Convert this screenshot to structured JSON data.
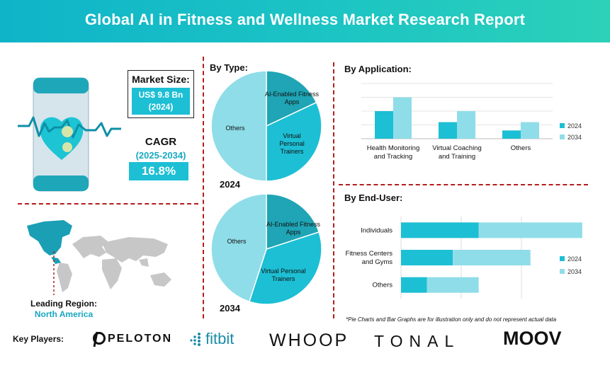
{
  "header": {
    "title": "Global AI in Fitness and Wellness Market Research Report"
  },
  "market_size": {
    "label": "Market Size:",
    "value_line1": "US$ 9.8 Bn",
    "value_line2": "(2024)"
  },
  "cagr": {
    "label": "CAGR",
    "period": "(2025-2034)",
    "value": "16.8%"
  },
  "region": {
    "label": "Leading Region:",
    "value": "North America"
  },
  "colors": {
    "accent": "#1dbfd4",
    "dark": "#1fa5b5",
    "light": "#8fdde8",
    "divider": "#b21e1e"
  },
  "chart_data": [
    {
      "type": "pie",
      "title": "By Type:",
      "year": "2024",
      "labels": [
        "AI-Enabled Fitness Apps",
        "Virtual Personal Trainers",
        "Others"
      ],
      "values": [
        18,
        32,
        50
      ]
    },
    {
      "type": "pie",
      "year": "2034",
      "labels": [
        "AI-Enabled Fitness Apps",
        "Virtual Personal Trainers",
        "Others"
      ],
      "values": [
        20,
        35,
        45
      ]
    },
    {
      "type": "bar",
      "orientation": "vertical",
      "title": "By Application:",
      "categories": [
        "Health Monitoring and Tracking",
        "Virtual Coaching and Training",
        "Others"
      ],
      "series": [
        {
          "name": "2024",
          "values": [
            50,
            30,
            15
          ]
        },
        {
          "name": "2034",
          "values": [
            75,
            50,
            30
          ]
        }
      ],
      "ylim": [
        0,
        100
      ],
      "legend": "right"
    },
    {
      "type": "bar",
      "orientation": "horizontal",
      "stacked": true,
      "title": "By End-User:",
      "categories": [
        "Individuals",
        "Fitness Centers and Gyms",
        "Others"
      ],
      "series": [
        {
          "name": "2024",
          "values": [
            30,
            20,
            10
          ]
        },
        {
          "name": "2034",
          "values": [
            40,
            30,
            20
          ]
        }
      ],
      "xlim": [
        0,
        100
      ],
      "legend": "right"
    }
  ],
  "footnote": "*Pie Charts and Bar Graphs are for illustration only and do not represent actual data",
  "key_players": {
    "label": "Key Players:",
    "logos": [
      "PELOTON",
      "fitbit",
      "WHOOP",
      "TONAL",
      "MOOV"
    ]
  }
}
